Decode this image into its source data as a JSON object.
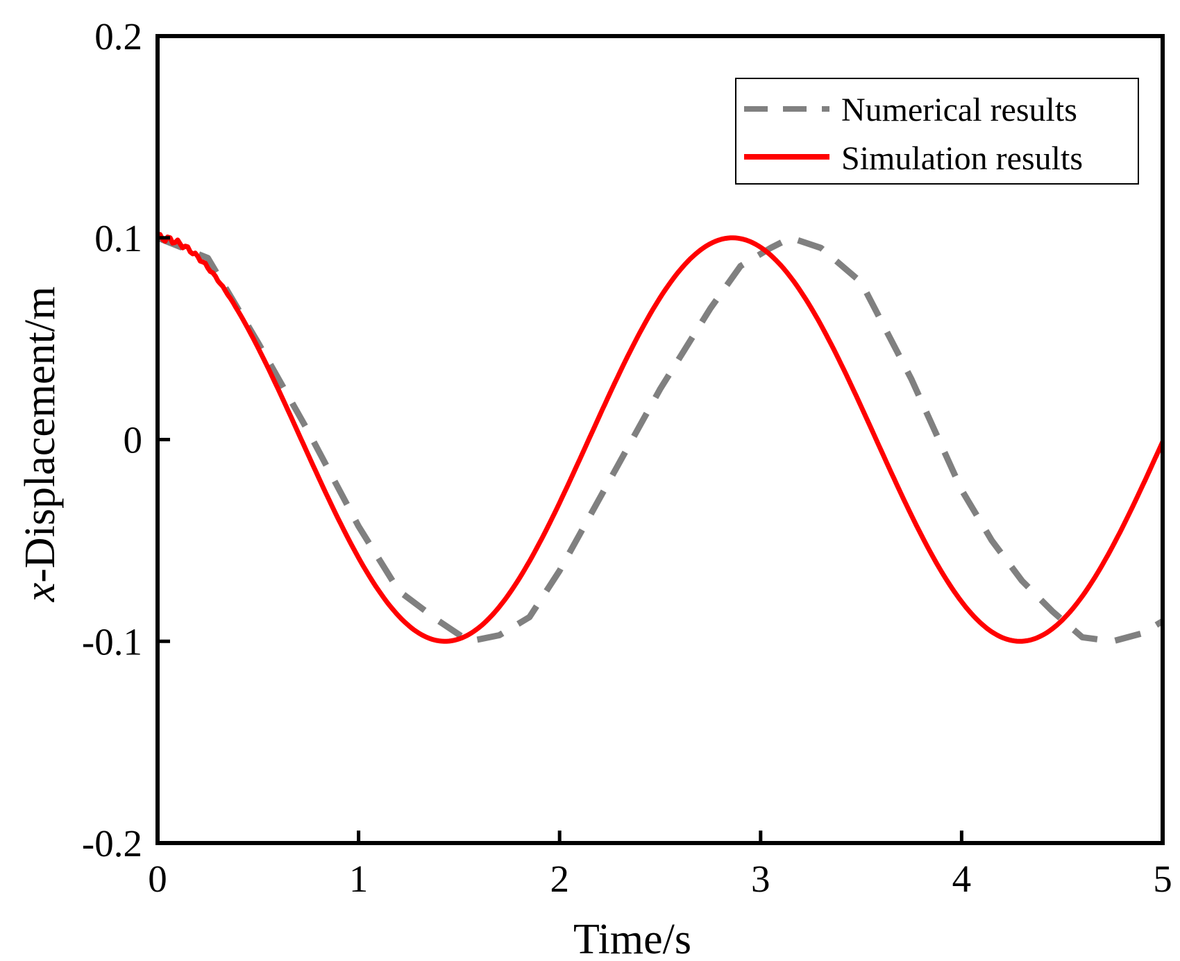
{
  "chart_data": {
    "type": "line",
    "title": "",
    "xlabel": "Time/s",
    "ylabel_prefix": "x",
    "ylabel_suffix": "-Displacement/m",
    "xlim": [
      0,
      5
    ],
    "ylim": [
      -0.2,
      0.2
    ],
    "xticks": [
      0,
      1,
      2,
      3,
      4,
      5
    ],
    "xtick_labels": [
      "0",
      "1",
      "2",
      "3",
      "4",
      "5"
    ],
    "yticks": [
      -0.2,
      -0.1,
      0,
      0.1,
      0.2
    ],
    "ytick_labels": [
      "-0.2",
      "-0.1",
      "0",
      "0.1",
      "0.2"
    ],
    "grid": false,
    "legend_position": "top-right",
    "series": [
      {
        "name": "Numerical results",
        "color": "#808080",
        "style": "dashed",
        "x": [
          0,
          0.25,
          0.5,
          0.75,
          1.0,
          1.2,
          1.4,
          1.55,
          1.7,
          1.85,
          2.0,
          2.25,
          2.5,
          2.75,
          2.9,
          3.05,
          3.15,
          3.3,
          3.5,
          3.75,
          4.0,
          4.15,
          4.3,
          4.45,
          4.6,
          4.75,
          4.9,
          5.0
        ],
        "y": [
          0.1,
          0.09,
          0.048,
          0.004,
          -0.043,
          -0.075,
          -0.09,
          -0.1,
          -0.097,
          -0.088,
          -0.065,
          -0.02,
          0.025,
          0.065,
          0.086,
          0.095,
          0.1,
          0.095,
          0.078,
          0.03,
          -0.025,
          -0.05,
          -0.07,
          -0.085,
          -0.098,
          -0.1,
          -0.096,
          -0.09
        ]
      },
      {
        "name": "Simulation results",
        "color": "#ff0000",
        "style": "solid",
        "function": "0.1*cos(2*pi*t/2.86)",
        "t_start": 0,
        "t_end": 5,
        "samples": 400,
        "ripple_until": 0.4,
        "ripple_amplitude": 0.0018
      }
    ]
  }
}
